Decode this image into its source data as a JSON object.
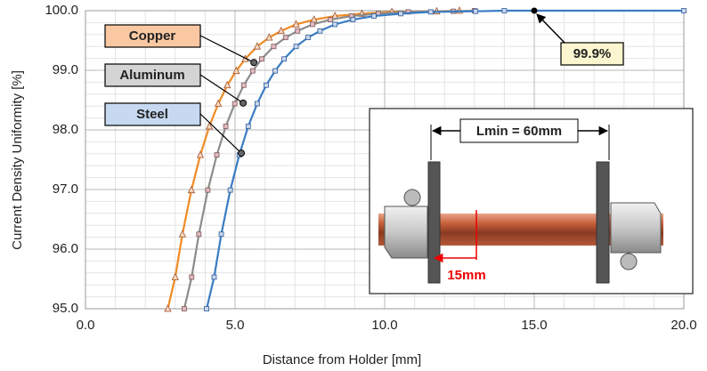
{
  "chart_data": {
    "type": "line",
    "x_label": "Distance from Holder [mm]",
    "y_label": "Current Density Uniformity [%]",
    "xlim": [
      0,
      20
    ],
    "ylim": [
      95,
      100
    ],
    "xticks": [
      {
        "value": 0,
        "label": "0.0"
      },
      {
        "value": 5,
        "label": "5.0"
      },
      {
        "value": 10,
        "label": "10.0"
      },
      {
        "value": 15,
        "label": "15.0"
      },
      {
        "value": 20,
        "label": "20.0"
      }
    ],
    "yticks": [
      {
        "value": 95,
        "label": "95.0"
      },
      {
        "value": 96,
        "label": "96.0"
      },
      {
        "value": 97,
        "label": "97.0"
      },
      {
        "value": 98,
        "label": "98.0"
      },
      {
        "value": 99,
        "label": "99.0"
      },
      {
        "value": 100,
        "label": "100.0"
      }
    ],
    "grid": true,
    "minor_grid": {
      "x": 1,
      "y": 0.2
    },
    "series": [
      {
        "name": "Copper",
        "color": "#f08a24",
        "marker": "triangle",
        "box_color": "#f9c8a2",
        "x": [
          2.75,
          3.0,
          3.24,
          3.54,
          3.84,
          4.14,
          4.44,
          4.74,
          5.04,
          5.34,
          5.74,
          6.14,
          6.54,
          7.04,
          7.64,
          8.34,
          9.24,
          10.24,
          11.74,
          12.5
        ],
        "values": [
          95.0,
          95.53,
          96.25,
          96.99,
          97.58,
          98.06,
          98.44,
          98.75,
          98.99,
          99.19,
          99.4,
          99.55,
          99.66,
          99.77,
          99.85,
          99.91,
          99.95,
          99.98,
          99.99,
          100.0
        ],
        "callout": {
          "x": 5.63,
          "y": 99.13
        }
      },
      {
        "name": "Aluminum",
        "color": "#8c8c8c",
        "marker": "square",
        "box_color": "#d4d4d4",
        "x": [
          3.3,
          3.55,
          3.79,
          4.09,
          4.39,
          4.69,
          4.99,
          5.29,
          5.59,
          5.89,
          6.29,
          6.69,
          7.09,
          7.59,
          8.19,
          8.89,
          9.79,
          10.79,
          12.29,
          13.0
        ],
        "values": [
          95.0,
          95.53,
          96.25,
          96.99,
          97.58,
          98.06,
          98.44,
          98.75,
          98.99,
          99.19,
          99.4,
          99.55,
          99.66,
          99.77,
          99.85,
          99.91,
          99.95,
          99.98,
          99.99,
          100.0
        ],
        "callout": {
          "x": 5.27,
          "y": 98.45
        }
      },
      {
        "name": "Steel",
        "color": "#3a7cc4",
        "marker": "square",
        "box_color": "#c6d9f1",
        "x": [
          4.05,
          4.3,
          4.54,
          4.84,
          5.14,
          5.44,
          5.74,
          6.04,
          6.34,
          6.64,
          7.04,
          7.44,
          7.84,
          8.34,
          8.94,
          9.64,
          10.54,
          11.54,
          13.04,
          14.0,
          20.0
        ],
        "values": [
          95.0,
          95.53,
          96.25,
          96.99,
          97.58,
          98.06,
          98.44,
          98.75,
          98.99,
          99.19,
          99.4,
          99.55,
          99.66,
          99.77,
          99.85,
          99.91,
          99.95,
          99.98,
          99.99,
          100.0,
          100.0
        ],
        "callout": {
          "x": 5.21,
          "y": 97.61
        }
      }
    ],
    "annotation": {
      "text": "99.9%",
      "x": 15,
      "y": 100
    },
    "inset": {
      "length_label": "Lmin = 60mm",
      "offset_label": "15mm"
    }
  }
}
